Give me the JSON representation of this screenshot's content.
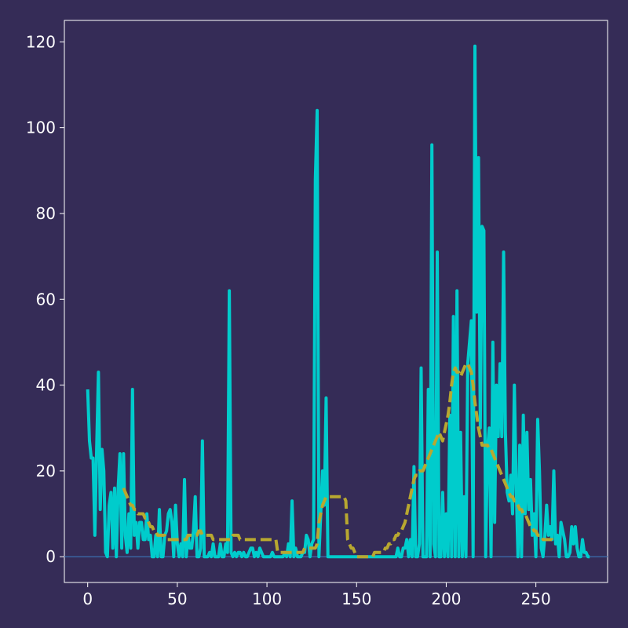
{
  "chart_data": {
    "type": "line",
    "title": "",
    "xlabel": "",
    "ylabel": "",
    "xlim": [
      -13,
      290
    ],
    "ylim": [
      -6,
      125
    ],
    "x_ticks": [
      0,
      50,
      100,
      150,
      200,
      250
    ],
    "y_ticks": [
      0,
      20,
      40,
      60,
      80,
      100,
      120
    ],
    "x_tick_labels": [
      "0",
      "50",
      "100",
      "150",
      "200",
      "250"
    ],
    "y_tick_labels": [
      "0",
      "20",
      "40",
      "60",
      "80",
      "100",
      "120"
    ],
    "grid": false,
    "legend": "none",
    "background_color": "#352c57",
    "zero_line_color": "#3a64a0",
    "series": [
      {
        "style": "solid",
        "color": "#00cccc",
        "values": [
          39,
          27,
          23,
          23,
          5,
          25,
          43,
          11,
          25,
          20,
          1,
          0,
          12,
          15,
          2,
          16,
          0,
          16,
          24,
          2,
          24,
          5,
          1,
          10,
          2,
          39,
          5,
          8,
          2,
          8,
          8,
          4,
          4,
          10,
          4,
          5,
          0,
          0,
          5,
          0,
          11,
          0,
          0,
          5,
          6,
          10,
          11,
          8,
          0,
          12,
          3,
          0,
          3,
          0,
          18,
          0,
          5,
          2,
          2,
          6,
          14,
          0,
          0,
          2,
          27,
          0,
          0,
          0,
          1,
          0,
          3,
          0,
          0,
          0,
          3,
          0,
          0,
          3,
          1,
          62,
          1,
          0,
          1,
          0,
          1,
          1,
          0,
          1,
          0,
          0,
          1,
          2,
          2,
          0,
          1,
          0,
          2,
          1,
          0,
          0,
          0,
          0,
          0,
          1,
          0,
          0,
          0,
          0,
          0,
          0,
          1,
          0,
          3,
          0,
          13,
          0,
          2,
          0,
          0,
          0,
          1,
          1,
          5,
          4,
          0,
          3,
          4,
          88,
          104,
          0,
          10,
          20,
          12,
          37,
          0,
          0,
          0,
          0,
          0,
          0,
          0,
          0,
          0,
          0,
          0,
          0,
          0,
          0,
          0,
          0,
          0,
          0,
          0,
          0,
          0,
          0,
          0,
          0,
          0,
          0,
          0,
          0,
          0,
          0,
          0,
          0,
          0,
          0,
          0,
          0,
          0,
          0,
          0,
          2,
          0,
          0,
          2,
          2,
          4,
          0,
          4,
          0,
          21,
          0,
          0,
          3,
          44,
          0,
          0,
          0,
          39,
          0,
          96,
          3,
          0,
          71,
          0,
          0,
          15,
          0,
          10,
          0,
          33,
          0,
          56,
          0,
          62,
          0,
          29,
          0,
          14,
          0,
          45,
          50,
          55,
          0,
          119,
          57,
          93,
          30,
          77,
          76,
          0,
          25,
          30,
          0,
          50,
          8,
          40,
          28,
          45,
          28,
          71,
          29,
          15,
          13,
          19,
          10,
          40,
          17,
          0,
          26,
          0,
          33,
          10,
          29,
          11,
          18,
          5,
          10,
          0,
          32,
          20,
          2,
          0,
          5,
          12,
          5,
          7,
          4,
          20,
          3,
          5,
          0,
          8,
          6,
          4,
          0,
          0,
          1,
          7,
          3,
          7,
          2,
          0,
          0,
          4,
          1,
          1,
          0,
          0
        ]
      },
      {
        "style": "dashed",
        "color": "#b8a830",
        "values": [
          null,
          null,
          null,
          null,
          null,
          null,
          null,
          null,
          null,
          null,
          null,
          null,
          null,
          null,
          null,
          null,
          null,
          null,
          null,
          null,
          16,
          15,
          14,
          13,
          12,
          12,
          11,
          11,
          10,
          10,
          10,
          10,
          9,
          9,
          8,
          7,
          7,
          6,
          6,
          5,
          5,
          5,
          5,
          5,
          4,
          4,
          4,
          4,
          4,
          4,
          4,
          4,
          4,
          4,
          4,
          4,
          5,
          5,
          5,
          5,
          5,
          5,
          6,
          6,
          5,
          5,
          5,
          5,
          5,
          5,
          4,
          4,
          4,
          4,
          4,
          4,
          4,
          4,
          4,
          4,
          4,
          5,
          5,
          5,
          5,
          4,
          4,
          4,
          4,
          4,
          4,
          4,
          4,
          4,
          4,
          4,
          4,
          4,
          4,
          4,
          4,
          4,
          4,
          4,
          4,
          4,
          1,
          1,
          1,
          1,
          1,
          1,
          1,
          1,
          1,
          1,
          1,
          1,
          1,
          1,
          1,
          2,
          2,
          2,
          2,
          2,
          2,
          2,
          3,
          8,
          10,
          12,
          13,
          14,
          14,
          14,
          14,
          14,
          14,
          14,
          14,
          14,
          14,
          14,
          13,
          4,
          3,
          2,
          2,
          1,
          0,
          0,
          0,
          0,
          0,
          0,
          0,
          0,
          0,
          0,
          1,
          1,
          1,
          1,
          1,
          1,
          2,
          2,
          3,
          3,
          4,
          4,
          5,
          5,
          6,
          6,
          7,
          8,
          10,
          12,
          14,
          16,
          18,
          19,
          19,
          20,
          20,
          20,
          21,
          22,
          23,
          24,
          25,
          26,
          27,
          28,
          29,
          28,
          27,
          29,
          31,
          33,
          36,
          40,
          43,
          44,
          43,
          43,
          42,
          43,
          44,
          45,
          45,
          44,
          43,
          40,
          36,
          33,
          30,
          28,
          26,
          26,
          26,
          26,
          25,
          25,
          24,
          23,
          22,
          21,
          20,
          19,
          18,
          17,
          16,
          15,
          14,
          14,
          13,
          13,
          12,
          11,
          11,
          10,
          10,
          9,
          8,
          7,
          7,
          6,
          6,
          5,
          5,
          5,
          4,
          4,
          4,
          4,
          4,
          4,
          3
        ]
      }
    ]
  }
}
